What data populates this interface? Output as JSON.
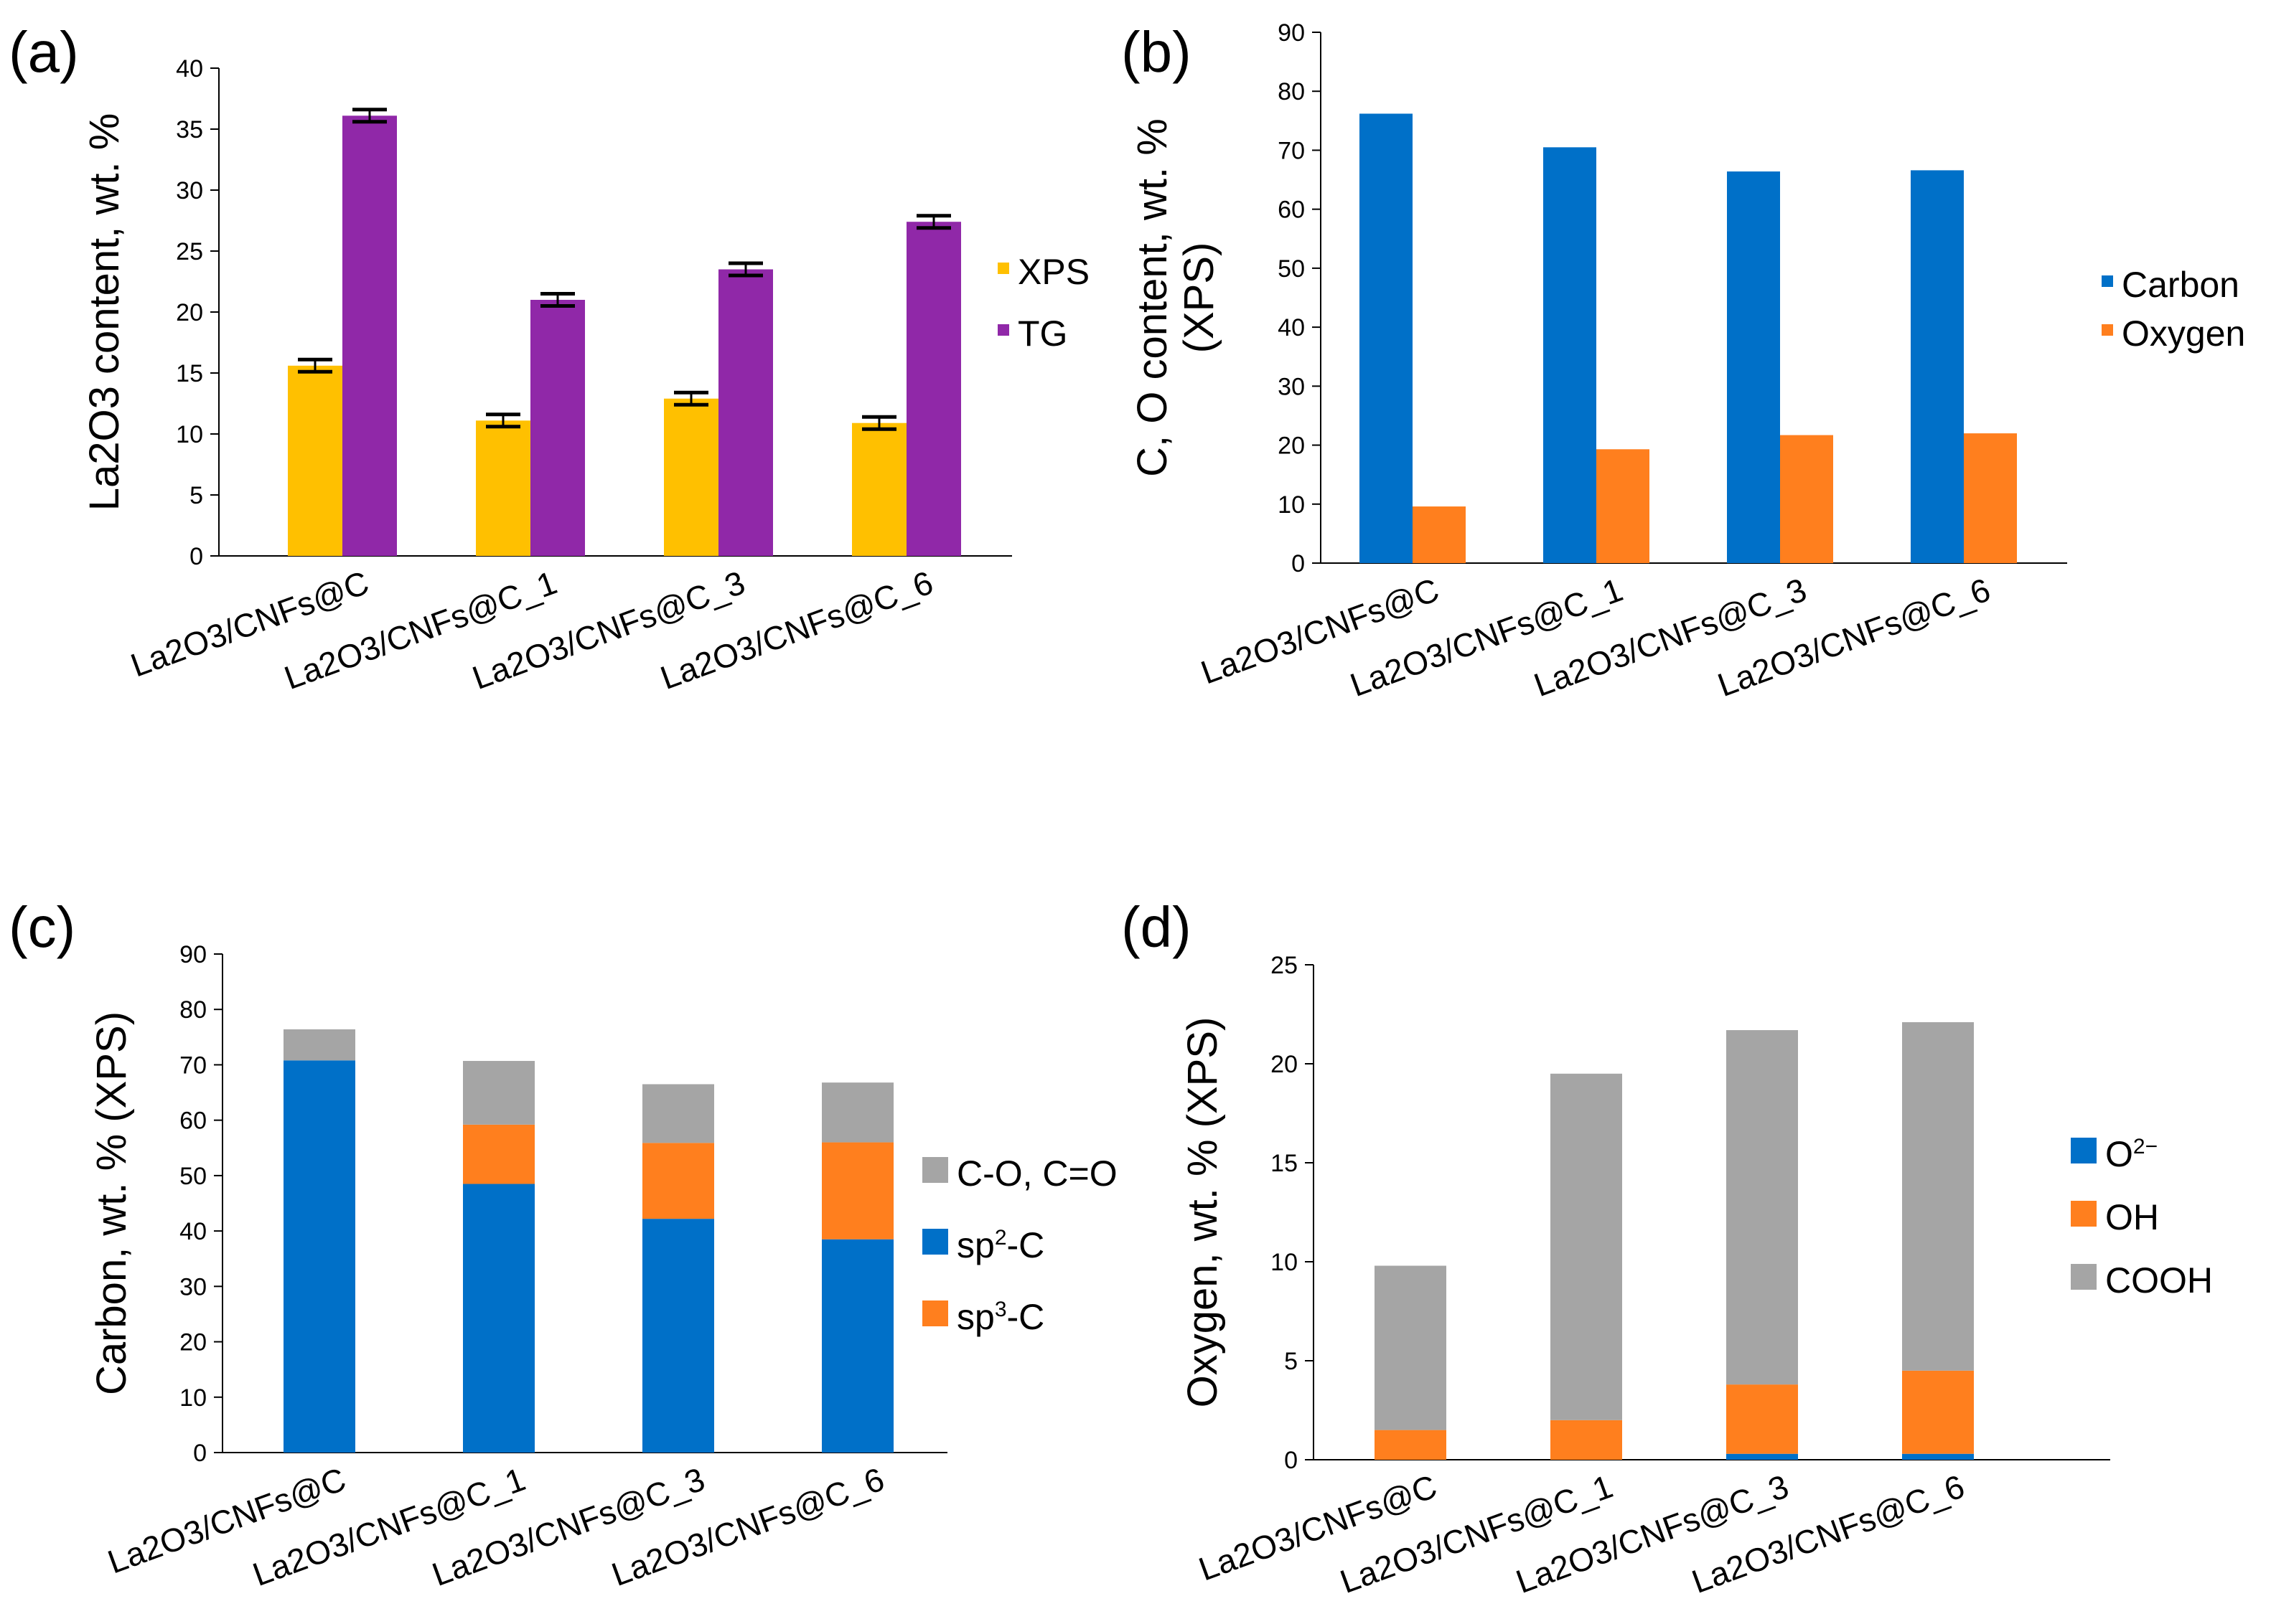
{
  "chart_data": [
    {
      "panel": "(a)",
      "type": "bar",
      "stacked": false,
      "categories": [
        "La2O3/CNFs@C",
        "La2O3/CNFs@C_1",
        "La2O3/CNFs@C_3",
        "La2O3/CNFs@C_6"
      ],
      "series": [
        {
          "name": "XPS",
          "color": "#FFC000",
          "values": [
            15.6,
            11.1,
            12.9,
            10.9
          ],
          "errors": [
            0.5,
            0.5,
            0.5,
            0.5
          ]
        },
        {
          "name": "TG",
          "color": "#9028A8",
          "values": [
            36.1,
            21.0,
            23.5,
            27.4
          ],
          "errors": [
            0.5,
            0.5,
            0.5,
            0.5
          ]
        }
      ],
      "ylabel": "La2O3 content, wt. %",
      "ylim": [
        0,
        40
      ],
      "yticks": [
        0,
        5,
        10,
        15,
        20,
        25,
        30,
        35,
        40
      ],
      "legend_position": "right"
    },
    {
      "panel": "(b)",
      "type": "bar",
      "stacked": false,
      "categories": [
        "La2O3/CNFs@C",
        "La2O3/CNFs@C_1",
        "La2O3/CNFs@C_3",
        "La2O3/CNFs@C_6"
      ],
      "series": [
        {
          "name": "Carbon",
          "color": "#0070C8",
          "values": [
            76.2,
            70.5,
            66.4,
            66.6
          ]
        },
        {
          "name": "Oxygen",
          "color": "#FF7F1E",
          "values": [
            9.6,
            19.3,
            21.7,
            22.0
          ]
        }
      ],
      "ylabel_line1": "C, O content, wt. %",
      "ylabel_line2": "(XPS)",
      "ylim": [
        0,
        90
      ],
      "yticks": [
        0,
        10,
        20,
        30,
        40,
        50,
        60,
        70,
        80,
        90
      ],
      "legend_position": "right"
    },
    {
      "panel": "(c)",
      "type": "bar",
      "stacked": true,
      "categories": [
        "La2O3/CNFs@C",
        "La2O3/CNFs@C_1",
        "La2O3/CNFs@C_3",
        "La2O3/CNFs@C_6"
      ],
      "series": [
        {
          "name": "sp2-C",
          "color": "#0070C8",
          "values": [
            70.8,
            48.5,
            42.2,
            38.5
          ]
        },
        {
          "name": "sp3-C",
          "color": "#FF7F1E",
          "values": [
            0,
            10.7,
            13.7,
            17.5
          ]
        },
        {
          "name": "C-O, C=O",
          "color": "#A5A5A5",
          "values": [
            5.6,
            11.5,
            10.6,
            10.8
          ]
        }
      ],
      "legend": [
        {
          "text": "C-O, C=O",
          "color": "#A5A5A5"
        },
        {
          "base": "sp",
          "sup": "2",
          "rest": "-C",
          "color": "#0070C8"
        },
        {
          "base": "sp",
          "sup": "3",
          "rest": "-C",
          "color": "#FF7F1E"
        }
      ],
      "ylabel": "Carbon, wt. % (XPS)",
      "ylim": [
        0,
        90
      ],
      "yticks": [
        0,
        10,
        20,
        30,
        40,
        50,
        60,
        70,
        80,
        90
      ],
      "legend_position": "right"
    },
    {
      "panel": "(d)",
      "type": "bar",
      "stacked": true,
      "categories": [
        "La2O3/CNFs@C",
        "La2O3/CNFs@C_1",
        "La2O3/CNFs@C_3",
        "La2O3/CNFs@C_6"
      ],
      "series": [
        {
          "name": "O2-",
          "color": "#0070C8",
          "values": [
            0,
            0,
            0.3,
            0.3
          ]
        },
        {
          "name": "OH",
          "color": "#FF7F1E",
          "values": [
            1.5,
            2.0,
            3.5,
            4.2
          ]
        },
        {
          "name": "COOH",
          "color": "#A5A5A5",
          "values": [
            8.3,
            17.5,
            17.9,
            17.6
          ]
        }
      ],
      "legend": [
        {
          "base": "O",
          "sup": "2−",
          "rest": "",
          "color": "#0070C8"
        },
        {
          "text": "OH",
          "color": "#FF7F1E"
        },
        {
          "text": "COOH",
          "color": "#A5A5A5"
        }
      ],
      "ylabel": "Oxygen, wt. % (XPS)",
      "ylim": [
        0,
        25
      ],
      "yticks": [
        0,
        5,
        10,
        15,
        20,
        25
      ],
      "legend_position": "right"
    }
  ]
}
